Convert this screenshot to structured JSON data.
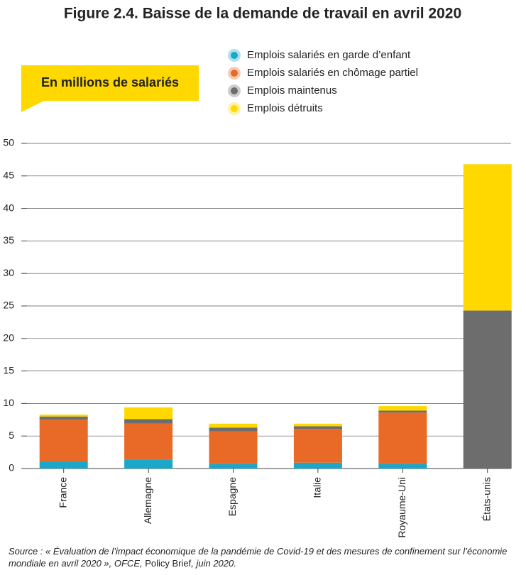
{
  "chart_data": {
    "type": "stacked-bar",
    "title": "Figure 2.4. Baisse de la demande de travail en avril 2020",
    "unit_label": "En millions de salariés",
    "categories": [
      "France",
      "Allemagne",
      "Espagne",
      "Italie",
      "Royaume-Uni",
      "États-unis"
    ],
    "series": [
      {
        "name": "Emplois salariés en garde d’enfant",
        "color": "#1aa7c9",
        "values": [
          1.1,
          1.4,
          0.7,
          0.9,
          0.7,
          0
        ]
      },
      {
        "name": "Emplois salariés en chômage partiel",
        "color": "#e86a26",
        "values": [
          6.4,
          5.5,
          5.0,
          5.2,
          7.9,
          0
        ]
      },
      {
        "name": "Emplois maintenus",
        "color": "#6d6d6d",
        "values": [
          0.5,
          0.7,
          0.6,
          0.4,
          0.3,
          24.3
        ]
      },
      {
        "name": "Emplois détruits",
        "color": "#ffd800",
        "values": [
          0.3,
          1.8,
          0.6,
          0.4,
          0.7,
          22.5
        ]
      }
    ],
    "ylim": [
      0,
      50
    ],
    "yticks": [
      0,
      5,
      10,
      15,
      20,
      25,
      30,
      35,
      40,
      45,
      50
    ],
    "grid": true,
    "source": [
      "Source : « Évaluation de l’impact économique de la pandémie de Covid-19 et des mesures de confinement sur l’économie mondiale en avril 2020 », OFCE, ",
      "Policy Brief",
      ", juin 2020."
    ]
  }
}
